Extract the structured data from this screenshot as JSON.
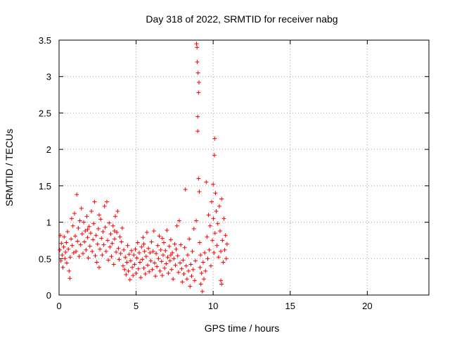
{
  "chart_data": {
    "type": "scatter",
    "title": "Day 318 of 2022, SRMTID for receiver nabg",
    "xlabel": "GPS time / hours",
    "ylabel": "SRMTID / TECUs",
    "xlim": [
      0,
      24
    ],
    "ylim": [
      0,
      3.5
    ],
    "xticks": [
      "0",
      "5",
      "10",
      "15",
      "20"
    ],
    "yticks": [
      "0",
      "0.5",
      "1",
      "1.5",
      "2",
      "2.5",
      "3",
      "3.5"
    ],
    "grid": true,
    "marker": "+",
    "color": "#ff0000",
    "series": [
      {
        "points": [
          [
            0.05,
            0.62
          ],
          [
            0.08,
            0.82
          ],
          [
            0.12,
            0.47
          ],
          [
            0.15,
            0.71
          ],
          [
            0.2,
            0.55
          ],
          [
            0.25,
            0.38
          ],
          [
            0.3,
            0.66
          ],
          [
            0.33,
            0.8
          ],
          [
            0.38,
            0.5
          ],
          [
            0.42,
            0.59
          ],
          [
            0.47,
            0.72
          ],
          [
            0.5,
            0.44
          ],
          [
            0.55,
            0.87
          ],
          [
            0.6,
            0.63
          ],
          [
            0.65,
            0.33
          ],
          [
            0.7,
            0.23
          ],
          [
            0.72,
            0.52
          ],
          [
            0.78,
            0.77
          ],
          [
            0.82,
            1.05
          ],
          [
            0.85,
            0.68
          ],
          [
            0.9,
            0.95
          ],
          [
            0.95,
            0.58
          ],
          [
            1.0,
            1.12
          ],
          [
            1.05,
            0.81
          ],
          [
            1.1,
            0.6
          ],
          [
            1.15,
            1.38
          ],
          [
            1.2,
            0.74
          ],
          [
            1.25,
            0.92
          ],
          [
            1.3,
            0.53
          ],
          [
            1.35,
            1.02
          ],
          [
            1.4,
            0.69
          ],
          [
            1.45,
            1.19
          ],
          [
            1.5,
            0.84
          ],
          [
            1.55,
            0.57
          ],
          [
            1.6,
            1.0
          ],
          [
            1.65,
            0.73
          ],
          [
            1.7,
            0.88
          ],
          [
            1.75,
            0.62
          ],
          [
            1.8,
            1.08
          ],
          [
            1.85,
            0.79
          ],
          [
            1.9,
            0.51
          ],
          [
            1.95,
            0.94
          ],
          [
            2.0,
            0.67
          ],
          [
            2.05,
            0.85
          ],
          [
            2.1,
            1.15
          ],
          [
            2.15,
            0.6
          ],
          [
            2.2,
            0.76
          ],
          [
            2.25,
            0.98
          ],
          [
            2.3,
            1.28
          ],
          [
            2.35,
            0.54
          ],
          [
            2.4,
            0.82
          ],
          [
            2.45,
            0.45
          ],
          [
            2.5,
            0.7
          ],
          [
            2.55,
            0.91
          ],
          [
            2.6,
            0.38
          ],
          [
            2.65,
            0.63
          ],
          [
            2.7,
            1.04
          ],
          [
            2.75,
            0.78
          ],
          [
            2.8,
            0.55
          ],
          [
            2.85,
            0.87
          ],
          [
            2.9,
            0.69
          ],
          [
            2.95,
            1.22
          ],
          [
            3.0,
            0.93
          ],
          [
            3.05,
            0.6
          ],
          [
            3.1,
            1.28
          ],
          [
            3.15,
            0.75
          ],
          [
            3.2,
            0.48
          ],
          [
            3.25,
            0.99
          ],
          [
            3.3,
            0.66
          ],
          [
            3.35,
            0.84
          ],
          [
            3.4,
            0.53
          ],
          [
            3.45,
            0.71
          ],
          [
            3.5,
            0.95
          ],
          [
            3.55,
            0.42
          ],
          [
            3.6,
            0.77
          ],
          [
            3.65,
            1.08
          ],
          [
            3.7,
            0.59
          ],
          [
            3.75,
            0.86
          ],
          [
            3.8,
            1.15
          ],
          [
            3.85,
            0.64
          ],
          [
            3.9,
            0.49
          ],
          [
            3.95,
            0.8
          ],
          [
            4.0,
            0.57
          ],
          [
            4.05,
            0.73
          ],
          [
            4.1,
            0.92
          ],
          [
            4.15,
            0.4
          ],
          [
            4.2,
            0.62
          ],
          [
            4.25,
            0.35
          ],
          [
            4.3,
            0.52
          ],
          [
            4.35,
            0.28
          ],
          [
            4.4,
            0.45
          ],
          [
            4.45,
            0.68
          ],
          [
            4.5,
            0.33
          ],
          [
            4.55,
            0.56
          ],
          [
            4.6,
            0.21
          ],
          [
            4.65,
            0.47
          ],
          [
            4.7,
            0.61
          ],
          [
            4.75,
            0.38
          ],
          [
            4.8,
            0.27
          ],
          [
            4.85,
            0.55
          ],
          [
            4.9,
            0.42
          ],
          [
            4.95,
            0.63
          ],
          [
            5.0,
            0.3
          ],
          [
            5.05,
            0.51
          ],
          [
            5.1,
            0.72
          ],
          [
            5.15,
            0.36
          ],
          [
            5.2,
            0.58
          ],
          [
            5.25,
            0.45
          ],
          [
            5.3,
            0.24
          ],
          [
            5.35,
            0.66
          ],
          [
            5.4,
            0.49
          ],
          [
            5.45,
            0.79
          ],
          [
            5.5,
            0.37
          ],
          [
            5.55,
            0.6
          ],
          [
            5.6,
            0.29
          ],
          [
            5.65,
            0.53
          ],
          [
            5.7,
            0.86
          ],
          [
            5.75,
            0.41
          ],
          [
            5.8,
            0.64
          ],
          [
            5.85,
            0.32
          ],
          [
            5.9,
            0.58
          ],
          [
            5.95,
            0.47
          ],
          [
            6.0,
            0.73
          ],
          [
            6.05,
            0.35
          ],
          [
            6.1,
            0.6
          ],
          [
            6.15,
            0.88
          ],
          [
            6.2,
            0.44
          ],
          [
            6.25,
            0.26
          ],
          [
            6.3,
            0.57
          ],
          [
            6.35,
            0.39
          ],
          [
            6.4,
            0.68
          ],
          [
            6.45,
            0.5
          ],
          [
            6.5,
            0.81
          ],
          [
            6.55,
            0.33
          ],
          [
            6.6,
            0.62
          ],
          [
            6.65,
            0.46
          ],
          [
            6.7,
            0.27
          ],
          [
            6.75,
            0.55
          ],
          [
            6.8,
            0.72
          ],
          [
            6.85,
            0.37
          ],
          [
            6.9,
            0.61
          ],
          [
            6.95,
            0.43
          ],
          [
            7.0,
            0.89
          ],
          [
            7.05,
            0.52
          ],
          [
            7.1,
            0.3
          ],
          [
            7.15,
            0.67
          ],
          [
            7.2,
            0.47
          ],
          [
            7.25,
            0.76
          ],
          [
            7.3,
            0.35
          ],
          [
            7.35,
            0.58
          ],
          [
            7.4,
            0.22
          ],
          [
            7.45,
            0.5
          ],
          [
            7.5,
            0.7
          ],
          [
            7.55,
            0.41
          ],
          [
            7.6,
            0.63
          ],
          [
            7.65,
            0.95
          ],
          [
            7.7,
            0.54
          ],
          [
            7.75,
            0.31
          ],
          [
            7.8,
            1.02
          ],
          [
            7.85,
            0.44
          ],
          [
            7.9,
            0.69
          ],
          [
            7.95,
            0.36
          ],
          [
            8.0,
            0.18
          ],
          [
            8.05,
            0.48
          ],
          [
            8.1,
            0.29
          ],
          [
            8.15,
            0.65
          ],
          [
            8.2,
            1.45
          ],
          [
            8.25,
            0.4
          ],
          [
            8.3,
            0.22
          ],
          [
            8.35,
            0.55
          ],
          [
            8.4,
            0.33
          ],
          [
            8.45,
            0.77
          ],
          [
            8.5,
            0.12
          ],
          [
            8.55,
            0.42
          ],
          [
            8.6,
            0.26
          ],
          [
            8.65,
            0.6
          ],
          [
            8.7,
            0.35
          ],
          [
            8.75,
            0.91
          ],
          [
            8.8,
            0.2
          ],
          [
            8.85,
            0.47
          ],
          [
            8.9,
            1.02
          ],
          [
            8.92,
            3.45
          ],
          [
            8.95,
            3.4
          ],
          [
            8.97,
            3.2
          ],
          [
            9.0,
            2.45
          ],
          [
            9.0,
            2.25
          ],
          [
            9.02,
            3.05
          ],
          [
            9.05,
            2.78
          ],
          [
            9.05,
            1.6
          ],
          [
            9.08,
            2.92
          ],
          [
            9.1,
            1.42
          ],
          [
            9.12,
            0.72
          ],
          [
            9.15,
            0.38
          ],
          [
            9.18,
            0.55
          ],
          [
            9.2,
            0.15
          ],
          [
            9.25,
            0.3
          ],
          [
            9.3,
            0.05
          ],
          [
            9.35,
            0.45
          ],
          [
            9.4,
            0.22
          ],
          [
            9.45,
            0.58
          ],
          [
            9.5,
            0.33
          ],
          [
            9.55,
            1.55
          ],
          [
            9.6,
            0.8
          ],
          [
            9.65,
            0.5
          ],
          [
            9.7,
            1.1
          ],
          [
            9.75,
            0.62
          ],
          [
            9.8,
            0.95
          ],
          [
            9.85,
            0.4
          ],
          [
            9.9,
            1.28
          ],
          [
            9.95,
            0.75
          ],
          [
            10.0,
            1.52
          ],
          [
            10.02,
            1.05
          ],
          [
            10.05,
            0.58
          ],
          [
            10.08,
            1.92
          ],
          [
            10.1,
            2.15
          ],
          [
            10.12,
            0.85
          ],
          [
            10.15,
            1.4
          ],
          [
            10.2,
            1.15
          ],
          [
            10.25,
            0.68
          ],
          [
            10.3,
            0.98
          ],
          [
            10.35,
            0.52
          ],
          [
            10.4,
            1.22
          ],
          [
            10.45,
            0.88
          ],
          [
            10.5,
            0.6
          ],
          [
            10.55,
            1.32
          ],
          [
            10.6,
            0.75
          ],
          [
            10.65,
            0.45
          ],
          [
            10.7,
            1.05
          ],
          [
            10.75,
            0.62
          ],
          [
            10.8,
            0.82
          ],
          [
            10.85,
            0.5
          ],
          [
            10.9,
            0.7
          ],
          [
            10.55,
            0.15
          ],
          [
            10.5,
            0.2
          ],
          [
            1.85,
            0.9
          ],
          [
            3.6,
            0.88
          ],
          [
            5.5,
            0.7
          ],
          [
            6.7,
            0.78
          ],
          [
            7.25,
            0.55
          ],
          [
            2.6,
            1.1
          ]
        ]
      }
    ]
  }
}
